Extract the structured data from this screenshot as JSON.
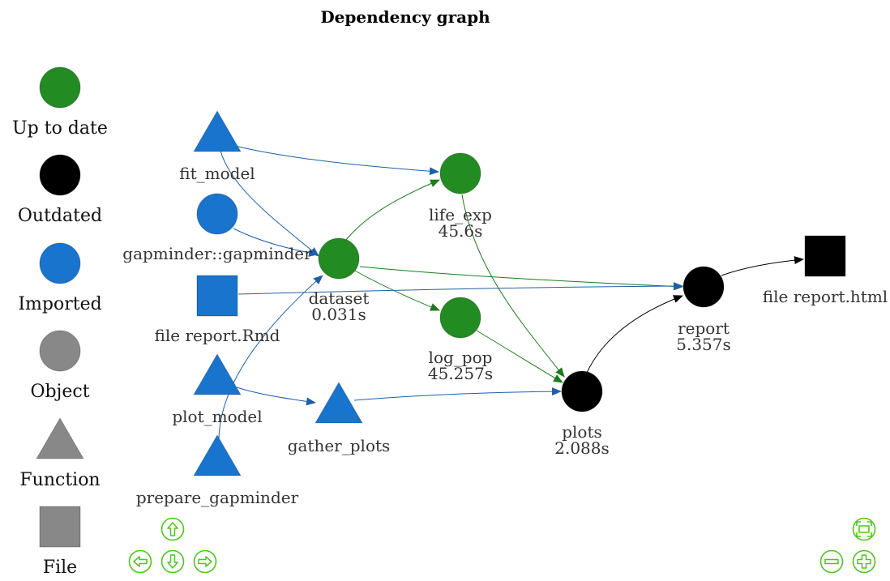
{
  "title": "Dependency graph",
  "colors": {
    "up_to_date": "#228B22",
    "outdated": "#000000",
    "imported": "#1874CD",
    "object": "#888888",
    "edge_imported": "#1F5FA8",
    "edge_up_to_date": "#1E7A1E",
    "edge_outdated": "#000000",
    "nav": "#4EC41E"
  },
  "legend": [
    {
      "label": "Up to date",
      "shape": "circle",
      "color": "up_to_date"
    },
    {
      "label": "Outdated",
      "shape": "circle",
      "color": "outdated"
    },
    {
      "label": "Imported",
      "shape": "circle",
      "color": "imported"
    },
    {
      "label": "Object",
      "shape": "circle",
      "color": "object"
    },
    {
      "label": "Function",
      "shape": "triangle",
      "color": "object"
    },
    {
      "label": "File",
      "shape": "square",
      "color": "object"
    }
  ],
  "nodes": {
    "fit_model": {
      "label": "fit_model",
      "time": "",
      "shape": "triangle",
      "status": "imported"
    },
    "gapminder": {
      "label": "gapminder::gapminder",
      "time": "",
      "shape": "circle",
      "status": "imported"
    },
    "report_rmd": {
      "label": "file report.Rmd",
      "time": "",
      "shape": "square",
      "status": "imported"
    },
    "plot_model": {
      "label": "plot_model",
      "time": "",
      "shape": "triangle",
      "status": "imported"
    },
    "prepare_gapminder": {
      "label": "prepare_gapminder",
      "time": "",
      "shape": "triangle",
      "status": "imported"
    },
    "dataset": {
      "label": "dataset",
      "time": "0.031s",
      "shape": "circle",
      "status": "up_to_date"
    },
    "gather_plots": {
      "label": "gather_plots",
      "time": "",
      "shape": "triangle",
      "status": "imported"
    },
    "life_exp": {
      "label": "life_exp",
      "time": "45.6s",
      "shape": "circle",
      "status": "up_to_date"
    },
    "log_pop": {
      "label": "log_pop",
      "time": "45.257s",
      "shape": "circle",
      "status": "up_to_date"
    },
    "plots": {
      "label": "plots",
      "time": "2.088s",
      "shape": "circle",
      "status": "outdated"
    },
    "report": {
      "label": "report",
      "time": "5.357s",
      "shape": "circle",
      "status": "outdated"
    },
    "report_html": {
      "label": "file report.html",
      "time": "",
      "shape": "square",
      "status": "outdated"
    }
  },
  "edges": [
    {
      "from": "fit_model",
      "to": "life_exp"
    },
    {
      "from": "fit_model",
      "to": "dataset"
    },
    {
      "from": "gapminder",
      "to": "dataset"
    },
    {
      "from": "prepare_gapminder",
      "to": "dataset"
    },
    {
      "from": "dataset",
      "to": "life_exp"
    },
    {
      "from": "dataset",
      "to": "log_pop"
    },
    {
      "from": "dataset",
      "to": "report"
    },
    {
      "from": "report_rmd",
      "to": "report"
    },
    {
      "from": "plot_model",
      "to": "gather_plots"
    },
    {
      "from": "gather_plots",
      "to": "plots"
    },
    {
      "from": "life_exp",
      "to": "plots"
    },
    {
      "from": "log_pop",
      "to": "plots"
    },
    {
      "from": "plots",
      "to": "report"
    },
    {
      "from": "report",
      "to": "report_html"
    }
  ],
  "nav_controls": [
    {
      "name": "pan-up-button",
      "icon": "arrow-up-icon"
    },
    {
      "name": "pan-left-button",
      "icon": "arrow-left-icon"
    },
    {
      "name": "pan-down-button",
      "icon": "arrow-down-icon"
    },
    {
      "name": "pan-right-button",
      "icon": "arrow-right-icon"
    },
    {
      "name": "fit-view-button",
      "icon": "fit-screen-icon"
    },
    {
      "name": "zoom-out-button",
      "icon": "minus-icon"
    },
    {
      "name": "zoom-in-button",
      "icon": "plus-icon"
    }
  ]
}
